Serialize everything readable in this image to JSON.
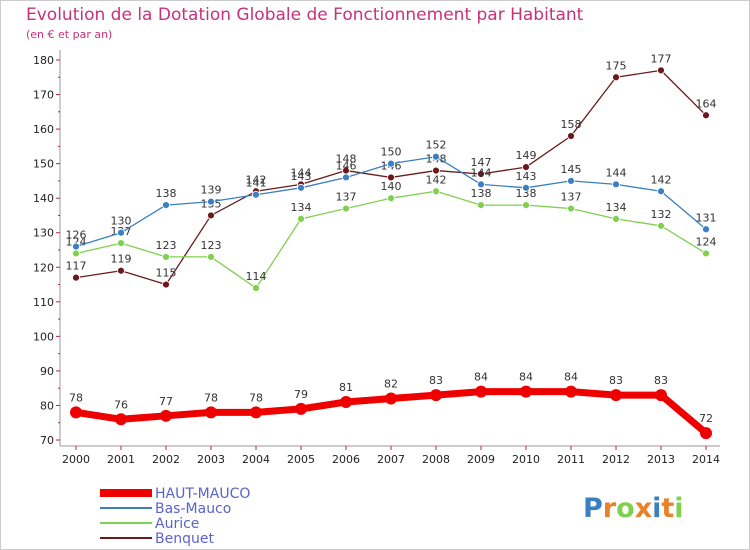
{
  "chart_data": {
    "type": "line",
    "title": "Evolution de la Dotation Globale de Fonctionnement par Habitant",
    "subtitle": "(en € et par an)",
    "xlabel": "",
    "ylabel": "",
    "ylim": [
      70,
      180
    ],
    "yticks": [
      70,
      80,
      90,
      100,
      110,
      120,
      130,
      140,
      150,
      160,
      170,
      180
    ],
    "categories": [
      "2000",
      "2001",
      "2002",
      "2003",
      "2004",
      "2005",
      "2006",
      "2007",
      "2008",
      "2009",
      "2010",
      "2011",
      "2012",
      "2013",
      "2014"
    ],
    "series": [
      {
        "name": "HAUT-MAUCO",
        "color": "#ee0000",
        "values": [
          78,
          76,
          77,
          78,
          78,
          79,
          81,
          82,
          83,
          84,
          84,
          84,
          83,
          83,
          72
        ]
      },
      {
        "name": "Bas-Mauco",
        "color": "#3a7fc1",
        "values": [
          126,
          130,
          138,
          139,
          141,
          143,
          146,
          150,
          152,
          144,
          143,
          145,
          144,
          142,
          131
        ]
      },
      {
        "name": "Aurice",
        "color": "#7fd04f",
        "values": [
          124,
          127,
          123,
          123,
          114,
          134,
          137,
          140,
          142,
          138,
          138,
          137,
          134,
          132,
          124
        ]
      },
      {
        "name": "Benquet",
        "color": "#6b1a1a",
        "values": [
          117,
          119,
          115,
          135,
          142,
          144,
          148,
          146,
          148,
          147,
          149,
          158,
          175,
          177,
          164
        ]
      }
    ],
    "legend_position": "bottom-left",
    "grid": false
  },
  "logo": {
    "text": "Proxiti",
    "letter_colors": [
      "#3a7fc1",
      "#e8822a",
      "#7fd04f",
      "#e8822a",
      "#3a7fc1",
      "#e8822a",
      "#7fd04f"
    ]
  }
}
